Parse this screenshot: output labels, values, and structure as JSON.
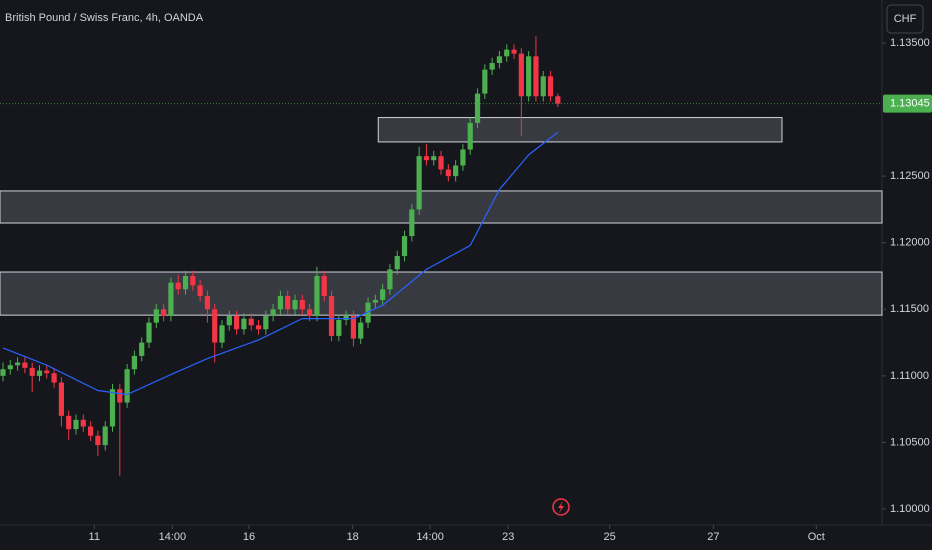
{
  "chart_data": {
    "type": "candlestick",
    "title": "British Pound / Swiss Franc, 4h, OANDA",
    "currency": "CHF",
    "up_color": "#4caf50",
    "down_color": "#f23645",
    "ylim": [
      1.0988,
      1.13823
    ],
    "yticks": [
      {
        "value": 1.135,
        "label": "1.13500"
      },
      {
        "value": 1.125,
        "label": "1.12500"
      },
      {
        "value": 1.12,
        "label": "1.12000"
      },
      {
        "value": 1.115,
        "label": "1.11500"
      },
      {
        "value": 1.11,
        "label": "1.11000"
      },
      {
        "value": 1.105,
        "label": "1.10500"
      },
      {
        "value": 1.1,
        "label": "1.10000"
      }
    ],
    "xlim": [
      -0.41,
      120.4
    ],
    "xticks": [
      {
        "value": 12.5,
        "label": "11"
      },
      {
        "value": 23.2,
        "label": "14:00"
      },
      {
        "value": 33.7,
        "label": "16"
      },
      {
        "value": 47.9,
        "label": "18"
      },
      {
        "value": 58.5,
        "label": "14:00"
      },
      {
        "value": 69.2,
        "label": "23"
      },
      {
        "value": 83.1,
        "label": "25"
      },
      {
        "value": 97.3,
        "label": "27"
      },
      {
        "value": 111.4,
        "label": "Oct"
      }
    ],
    "ohlc": [
      [
        1.11,
        1.111,
        1.1096,
        1.1105
      ],
      [
        1.1105,
        1.1112,
        1.1101,
        1.1108
      ],
      [
        1.1108,
        1.1114,
        1.1104,
        1.111
      ],
      [
        1.111,
        1.1114,
        1.1102,
        1.1106
      ],
      [
        1.1106,
        1.111,
        1.1088,
        1.11
      ],
      [
        1.11,
        1.1108,
        1.1096,
        1.1104
      ],
      [
        1.1104,
        1.1108,
        1.1098,
        1.1102
      ],
      [
        1.1102,
        1.1106,
        1.1091,
        1.1095
      ],
      [
        1.1095,
        1.1099,
        1.1062,
        1.107
      ],
      [
        1.107,
        1.1074,
        1.1052,
        1.106
      ],
      [
        1.106,
        1.1071,
        1.1056,
        1.1067
      ],
      [
        1.1067,
        1.1071,
        1.1058,
        1.1062
      ],
      [
        1.1062,
        1.1066,
        1.1051,
        1.1055
      ],
      [
        1.1055,
        1.1059,
        1.104,
        1.1048
      ],
      [
        1.1048,
        1.1066,
        1.1044,
        1.1062
      ],
      [
        1.1062,
        1.1094,
        1.1058,
        1.109
      ],
      [
        1.109,
        1.1094,
        1.1025,
        1.108
      ],
      [
        1.108,
        1.1109,
        1.1076,
        1.1105
      ],
      [
        1.1105,
        1.1119,
        1.1101,
        1.1115
      ],
      [
        1.1115,
        1.1129,
        1.1111,
        1.1125
      ],
      [
        1.1125,
        1.1144,
        1.1121,
        1.114
      ],
      [
        1.114,
        1.1154,
        1.1136,
        1.115
      ],
      [
        1.115,
        1.1154,
        1.1141,
        1.1145
      ],
      [
        1.1145,
        1.1174,
        1.1141,
        1.117
      ],
      [
        1.117,
        1.1176,
        1.1161,
        1.1165
      ],
      [
        1.1165,
        1.1179,
        1.1161,
        1.1175
      ],
      [
        1.1175,
        1.1179,
        1.1164,
        1.1168
      ],
      [
        1.1168,
        1.1172,
        1.1156,
        1.116
      ],
      [
        1.116,
        1.1164,
        1.114,
        1.115
      ],
      [
        1.115,
        1.1154,
        1.111,
        1.1125
      ],
      [
        1.1125,
        1.1142,
        1.1121,
        1.1138
      ],
      [
        1.1138,
        1.1149,
        1.1134,
        1.1145
      ],
      [
        1.1145,
        1.1149,
        1.1131,
        1.1135
      ],
      [
        1.1135,
        1.1147,
        1.1131,
        1.1143
      ],
      [
        1.1143,
        1.1147,
        1.1134,
        1.1138
      ],
      [
        1.1138,
        1.1142,
        1.1131,
        1.1135
      ],
      [
        1.1135,
        1.1149,
        1.1131,
        1.1145
      ],
      [
        1.1145,
        1.1154,
        1.1141,
        1.115
      ],
      [
        1.115,
        1.1164,
        1.1146,
        1.116
      ],
      [
        1.116,
        1.1164,
        1.1146,
        1.115
      ],
      [
        1.115,
        1.1161,
        1.1146,
        1.1157
      ],
      [
        1.1157,
        1.1161,
        1.1146,
        1.115
      ],
      [
        1.115,
        1.1154,
        1.1141,
        1.1145
      ],
      [
        1.1145,
        1.1182,
        1.1141,
        1.1175
      ],
      [
        1.1175,
        1.1179,
        1.1156,
        1.116
      ],
      [
        1.116,
        1.1164,
        1.1126,
        1.113
      ],
      [
        1.113,
        1.1146,
        1.1126,
        1.1142
      ],
      [
        1.1142,
        1.1149,
        1.1138,
        1.1145
      ],
      [
        1.1145,
        1.1149,
        1.1122,
        1.1128
      ],
      [
        1.1128,
        1.1144,
        1.1124,
        1.114
      ],
      [
        1.114,
        1.1159,
        1.1136,
        1.1155
      ],
      [
        1.1155,
        1.1161,
        1.1151,
        1.1157
      ],
      [
        1.1157,
        1.1169,
        1.1153,
        1.1165
      ],
      [
        1.1165,
        1.1184,
        1.1161,
        1.118
      ],
      [
        1.118,
        1.1194,
        1.1176,
        1.119
      ],
      [
        1.119,
        1.1209,
        1.1186,
        1.1205
      ],
      [
        1.1205,
        1.1229,
        1.1201,
        1.1225
      ],
      [
        1.1225,
        1.1272,
        1.1221,
        1.1265
      ],
      [
        1.1265,
        1.1274,
        1.1258,
        1.1262
      ],
      [
        1.1262,
        1.1269,
        1.1258,
        1.1265
      ],
      [
        1.1265,
        1.1269,
        1.1251,
        1.1255
      ],
      [
        1.1255,
        1.1259,
        1.1246,
        1.125
      ],
      [
        1.125,
        1.1262,
        1.1246,
        1.1258
      ],
      [
        1.1258,
        1.1274,
        1.1254,
        1.127
      ],
      [
        1.127,
        1.1294,
        1.1266,
        1.129
      ],
      [
        1.129,
        1.1316,
        1.1286,
        1.1312
      ],
      [
        1.1312,
        1.1334,
        1.1308,
        1.133
      ],
      [
        1.133,
        1.1339,
        1.1326,
        1.1335
      ],
      [
        1.1335,
        1.1344,
        1.1331,
        1.134
      ],
      [
        1.134,
        1.1349,
        1.1336,
        1.1345
      ],
      [
        1.1345,
        1.1349,
        1.1338,
        1.1342
      ],
      [
        1.1342,
        1.1346,
        1.128,
        1.131
      ],
      [
        1.131,
        1.1344,
        1.1306,
        1.134
      ],
      [
        1.134,
        1.1355,
        1.1306,
        1.131
      ],
      [
        1.131,
        1.1329,
        1.1306,
        1.1325
      ],
      [
        1.1325,
        1.1329,
        1.1306,
        1.131
      ],
      [
        1.131,
        1.1312,
        1.1302,
        1.13045
      ]
    ],
    "ma": {
      "color": "#2962ff",
      "x": [
        0,
        6,
        13,
        17,
        23,
        28,
        35,
        41,
        48,
        52,
        58,
        64,
        68,
        72,
        76
      ],
      "values": [
        1.1121,
        1.1108,
        1.1089,
        1.1086,
        1.1101,
        1.1113,
        1.1127,
        1.1143,
        1.1143,
        1.1153,
        1.118,
        1.1198,
        1.124,
        1.1266,
        1.1283
      ]
    },
    "zones": [
      {
        "range": [
          1.12757,
          1.1294
        ],
        "xrange": [
          51.4,
          106.7
        ]
      },
      {
        "range": [
          1.12148,
          1.12389
        ]
      },
      {
        "range": [
          1.11456,
          1.1178
        ]
      }
    ],
    "last_price": {
      "value": 1.13045,
      "label": "1.13045"
    }
  }
}
